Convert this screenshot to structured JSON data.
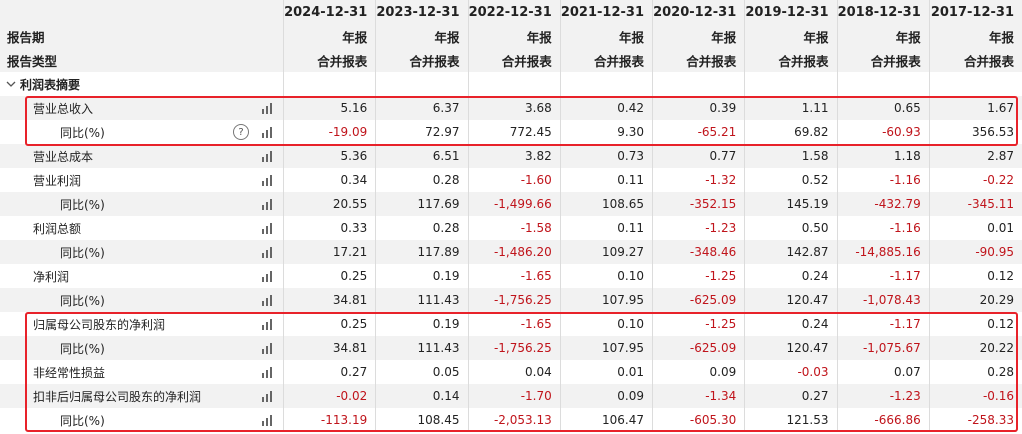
{
  "header": {
    "dates": [
      "2024-12-31",
      "2023-12-31",
      "2022-12-31",
      "2021-12-31",
      "2020-12-31",
      "2019-12-31",
      "2018-12-31",
      "2017-12-31"
    ],
    "period_label": "报告期",
    "period_values": [
      "年报",
      "年报",
      "年报",
      "年报",
      "年报",
      "年报",
      "年报",
      "年报"
    ],
    "type_label": "报告类型",
    "type_values": [
      "合并报表",
      "合并报表",
      "合并报表",
      "合并报表",
      "合并报表",
      "合并报表",
      "合并报表",
      "合并报表"
    ]
  },
  "section": {
    "title": "利润表摘要"
  },
  "rows": [
    {
      "label": "营业总收入",
      "values": [
        "5.16",
        "6.37",
        "3.68",
        "0.42",
        "0.39",
        "1.11",
        "0.65",
        "1.67"
      ]
    },
    {
      "label": "同比(%)",
      "values": [
        "-19.09",
        "72.97",
        "772.45",
        "9.30",
        "-65.21",
        "69.82",
        "-60.93",
        "356.53"
      ]
    },
    {
      "label": "营业总成本",
      "values": [
        "5.36",
        "6.51",
        "3.82",
        "0.73",
        "0.77",
        "1.58",
        "1.18",
        "2.87"
      ]
    },
    {
      "label": "营业利润",
      "values": [
        "0.34",
        "0.28",
        "-1.60",
        "0.11",
        "-1.32",
        "0.52",
        "-1.16",
        "-0.22"
      ]
    },
    {
      "label": "同比(%)",
      "values": [
        "20.55",
        "117.69",
        "-1,499.66",
        "108.65",
        "-352.15",
        "145.19",
        "-432.79",
        "-345.11"
      ]
    },
    {
      "label": "利润总额",
      "values": [
        "0.33",
        "0.28",
        "-1.58",
        "0.11",
        "-1.23",
        "0.50",
        "-1.16",
        "0.01"
      ]
    },
    {
      "label": "同比(%)",
      "values": [
        "17.21",
        "117.89",
        "-1,486.20",
        "109.27",
        "-348.46",
        "142.87",
        "-14,885.16",
        "-90.95"
      ]
    },
    {
      "label": "净利润",
      "values": [
        "0.25",
        "0.19",
        "-1.65",
        "0.10",
        "-1.25",
        "0.24",
        "-1.17",
        "0.12"
      ]
    },
    {
      "label": "同比(%)",
      "values": [
        "34.81",
        "111.43",
        "-1,756.25",
        "107.95",
        "-625.09",
        "120.47",
        "-1,078.43",
        "20.29"
      ]
    },
    {
      "label": "归属母公司股东的净利润",
      "values": [
        "0.25",
        "0.19",
        "-1.65",
        "0.10",
        "-1.25",
        "0.24",
        "-1.17",
        "0.12"
      ]
    },
    {
      "label": "同比(%)",
      "values": [
        "34.81",
        "111.43",
        "-1,756.25",
        "107.95",
        "-625.09",
        "120.47",
        "-1,075.67",
        "20.22"
      ]
    },
    {
      "label": "非经常性损益",
      "values": [
        "0.27",
        "0.05",
        "0.04",
        "0.01",
        "0.09",
        "-0.03",
        "0.07",
        "0.28"
      ]
    },
    {
      "label": "扣非后归属母公司股东的净利润",
      "values": [
        "-0.02",
        "0.14",
        "-1.70",
        "0.09",
        "-1.34",
        "0.27",
        "-1.23",
        "-0.16"
      ]
    },
    {
      "label": "同比(%)",
      "values": [
        "-113.19",
        "108.45",
        "-2,053.13",
        "106.47",
        "-605.30",
        "121.53",
        "-666.86",
        "-258.33"
      ]
    }
  ],
  "help_glyph": "?",
  "icons": {
    "bar": "bar-chart-icon",
    "help": "help-icon",
    "caret": "caret-down-icon"
  },
  "colors": {
    "negative": "#c0141b",
    "highlight": "#e8222a",
    "shade": "#f2f2f2"
  }
}
